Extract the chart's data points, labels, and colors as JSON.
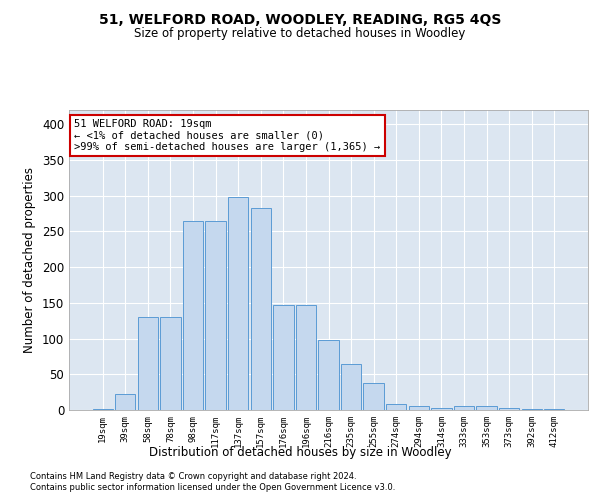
{
  "title1": "51, WELFORD ROAD, WOODLEY, READING, RG5 4QS",
  "title2": "Size of property relative to detached houses in Woodley",
  "xlabel": "Distribution of detached houses by size in Woodley",
  "ylabel": "Number of detached properties",
  "categories": [
    "19sqm",
    "39sqm",
    "58sqm",
    "78sqm",
    "98sqm",
    "117sqm",
    "137sqm",
    "157sqm",
    "176sqm",
    "196sqm",
    "216sqm",
    "235sqm",
    "255sqm",
    "274sqm",
    "294sqm",
    "314sqm",
    "333sqm",
    "353sqm",
    "373sqm",
    "392sqm",
    "412sqm"
  ],
  "values": [
    2,
    22,
    130,
    130,
    265,
    265,
    298,
    283,
    147,
    147,
    98,
    65,
    38,
    8,
    6,
    3,
    5,
    5,
    3,
    2,
    2
  ],
  "bar_color": "#c5d8ee",
  "bar_edge_color": "#5b9bd5",
  "fig_background_color": "#ffffff",
  "ax_background_color": "#dce6f1",
  "grid_color": "#ffffff",
  "annotation_box_text": "51 WELFORD ROAD: 19sqm\n← <1% of detached houses are smaller (0)\n>99% of semi-detached houses are larger (1,365) →",
  "annotation_box_edge_color": "#cc0000",
  "annotation_box_fill": "#ffffff",
  "footnote1": "Contains HM Land Registry data © Crown copyright and database right 2024.",
  "footnote2": "Contains public sector information licensed under the Open Government Licence v3.0.",
  "ylim": [
    0,
    420
  ],
  "yticks": [
    0,
    50,
    100,
    150,
    200,
    250,
    300,
    350,
    400
  ]
}
